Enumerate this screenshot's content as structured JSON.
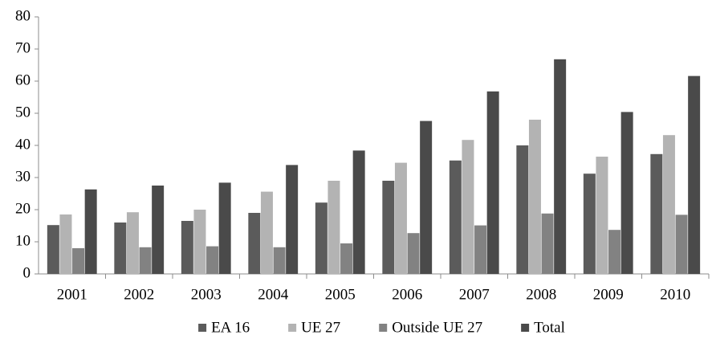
{
  "chart_data": {
    "type": "bar",
    "categories": [
      "2001",
      "2002",
      "2003",
      "2004",
      "2005",
      "2006",
      "2007",
      "2008",
      "2009",
      "2010"
    ],
    "series": [
      {
        "name": "EA 16",
        "color": "#5b5b5b",
        "values": [
          15.2,
          16,
          16.5,
          19,
          22.2,
          29,
          35.3,
          40,
          31.2,
          37.3
        ]
      },
      {
        "name": "UE 27",
        "color": "#b3b3b3",
        "values": [
          18.5,
          19.2,
          20,
          25.6,
          29,
          34.6,
          41.7,
          48,
          36.5,
          43.2
        ]
      },
      {
        "name": "Outside UE 27",
        "color": "#828282",
        "values": [
          8,
          8.3,
          8.6,
          8.3,
          9.5,
          12.7,
          15.1,
          18.8,
          13.7,
          18.4
        ]
      },
      {
        "name": "Total",
        "color": "#4a4a4a",
        "values": [
          26.3,
          27.5,
          28.4,
          33.9,
          38.4,
          47.6,
          56.8,
          66.8,
          50.4,
          61.6
        ]
      }
    ],
    "ylim": [
      0,
      80
    ],
    "yticks": [
      0,
      10,
      20,
      30,
      40,
      50,
      60,
      70,
      80
    ],
    "grid": false,
    "legend": "bottom"
  }
}
